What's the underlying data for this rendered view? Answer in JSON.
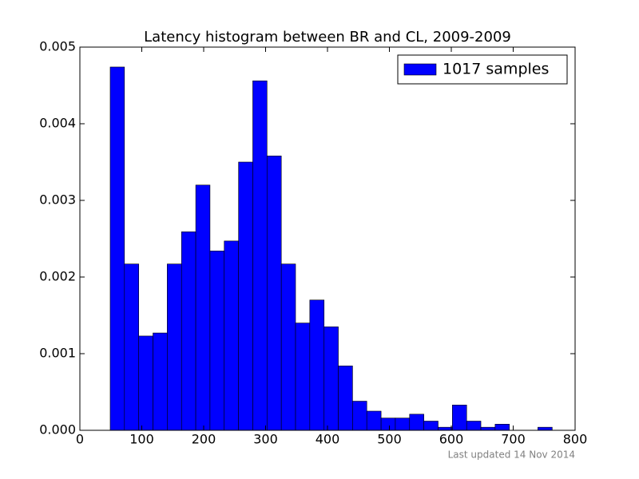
{
  "chart_data": {
    "type": "histogram",
    "title": "Latency histogram between BR and CL, 2009-2009",
    "bins": [
      49,
      72.0,
      95.1,
      118.1,
      141.1,
      164.2,
      187.2,
      210.2,
      233.2,
      256.3,
      279.3,
      302.3,
      325.4,
      348.4,
      371.4,
      394.5,
      417.5,
      440.5,
      463.5,
      486.6,
      509.6,
      532.6,
      555.7,
      578.7,
      601.7,
      624.8,
      647.8,
      670.8,
      693.8,
      716.9,
      739.9,
      763
    ],
    "series": [
      {
        "name": "1017 samples",
        "color": "#0000ff",
        "values": [
          0.00474,
          0.00217,
          0.00123,
          0.00127,
          0.00217,
          0.00259,
          0.0032,
          0.00234,
          0.00247,
          0.0035,
          0.00456,
          0.00358,
          0.00217,
          0.0014,
          0.0017,
          0.00135,
          0.00084,
          0.00038,
          0.00025,
          0.00016,
          0.00016,
          0.00021,
          0.00012,
          4e-05,
          0.00033,
          0.00012,
          4e-05,
          8e-05,
          0,
          0,
          4e-05
        ]
      }
    ],
    "xlim": [
      0,
      800
    ],
    "xticks": [
      0,
      100,
      200,
      300,
      400,
      500,
      600,
      700,
      800
    ],
    "ylim": [
      0,
      0.005
    ],
    "yticks": [
      {
        "value": 0,
        "label": "0.000"
      },
      {
        "value": 0.001,
        "label": "0.001"
      },
      {
        "value": 0.002,
        "label": "0.002"
      },
      {
        "value": 0.003,
        "label": "0.003"
      },
      {
        "value": 0.004,
        "label": "0.004"
      },
      {
        "value": 0.005,
        "label": "0.005"
      }
    ],
    "legend": "upper right",
    "grid": false
  },
  "footer": "Last updated 14 Nov 2014"
}
